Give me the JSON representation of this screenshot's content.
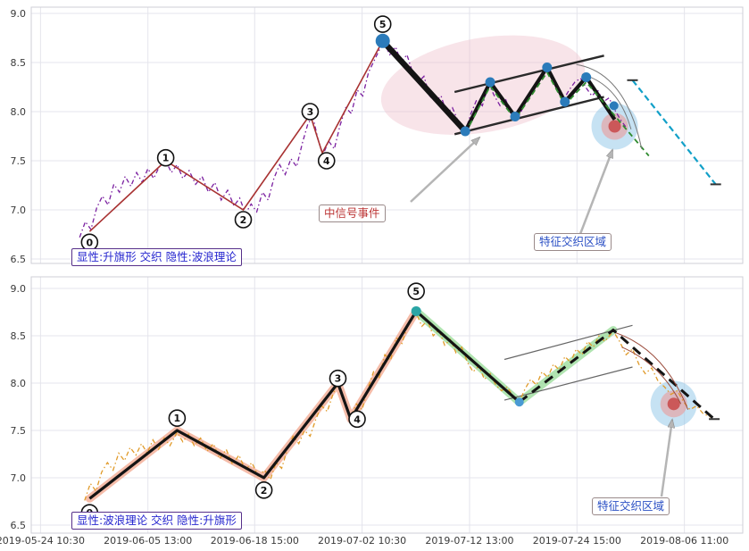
{
  "colors": {
    "grid": "#e4e4ec",
    "axis_text": "#3a3a3a",
    "border": "#cfcfd7",
    "top_price": "#7a1fa0",
    "bottom_price": "#e09a28",
    "wave_top": "#a83232",
    "black": "#141414",
    "green_dash": "#2e8b2e",
    "cyan_dash": "#12a0c8",
    "dot_blue": "#2b7bba",
    "pink_band": "#f2a58c",
    "green_band": "#8fd88f",
    "ellipse_pink": "#eebfca",
    "hotspot_outer": "#8ec6e8",
    "hotspot_mid": "#e8a0a0",
    "hotspot_inner": "#c84848",
    "channel_top": "#2a2a2a",
    "channel_bottom": "#666666",
    "arrow": "#b5b5b5"
  },
  "axes": {
    "y_ticks": [
      {
        "label": "9.0",
        "value": 9.0
      },
      {
        "label": "8.5",
        "value": 8.5
      },
      {
        "label": "8.0",
        "value": 8.0
      },
      {
        "label": "7.5",
        "value": 7.5
      },
      {
        "label": "7.0",
        "value": 7.0
      },
      {
        "label": "6.5",
        "value": 6.5
      }
    ],
    "x_ticks": [
      {
        "label": "2019-05-24 10:30",
        "x": 1.3
      },
      {
        "label": "2019-06-05 13:00",
        "x": 16.4
      },
      {
        "label": "2019-06-18 15:00",
        "x": 31.4
      },
      {
        "label": "2019-07-02 10:30",
        "x": 46.5
      },
      {
        "label": "2019-07-12 13:00",
        "x": 61.6
      },
      {
        "label": "2019-07-24 15:00",
        "x": 76.7
      },
      {
        "label": "2019-08-06 11:00",
        "x": 91.8
      }
    ]
  },
  "annotations": {
    "top_mode": "显性:升旗形 交织 隐性:波浪理论",
    "bottom_mode": "显性:波浪理论 交织 隐性:升旗形",
    "signal_event": "中信号事件",
    "feature_zone_top": "特征交织区域",
    "feature_zone_bottom": "特征交织区域"
  },
  "chart_data": [
    {
      "name": "upper",
      "type": "line",
      "title": "",
      "visible_pattern": "升旗形",
      "hidden_pattern": "波浪理论",
      "ylim": [
        6.45,
        9.06
      ],
      "xlim": [
        0,
        100
      ],
      "price_line": [
        [
          6.8,
          6.72
        ],
        [
          7.6,
          6.88
        ],
        [
          8.4,
          6.8
        ],
        [
          9.2,
          7.02
        ],
        [
          10,
          7.14
        ],
        [
          10.8,
          7.05
        ],
        [
          11.6,
          7.26
        ],
        [
          12.4,
          7.18
        ],
        [
          13.2,
          7.34
        ],
        [
          14,
          7.24
        ],
        [
          14.8,
          7.38
        ],
        [
          15.6,
          7.28
        ],
        [
          16.4,
          7.42
        ],
        [
          17.2,
          7.32
        ],
        [
          18,
          7.44
        ],
        [
          18.9,
          7.5
        ],
        [
          19.7,
          7.38
        ],
        [
          20.5,
          7.46
        ],
        [
          21.3,
          7.32
        ],
        [
          22.2,
          7.4
        ],
        [
          23.1,
          7.26
        ],
        [
          24,
          7.34
        ],
        [
          24.9,
          7.18
        ],
        [
          25.8,
          7.28
        ],
        [
          26.7,
          7.1
        ],
        [
          27.6,
          7.2
        ],
        [
          28.5,
          7.04
        ],
        [
          29.3,
          7.12
        ],
        [
          30.1,
          6.96
        ],
        [
          30.9,
          7.06
        ],
        [
          31.7,
          6.98
        ],
        [
          32.5,
          7.18
        ],
        [
          33.3,
          7.1
        ],
        [
          34.1,
          7.32
        ],
        [
          34.9,
          7.46
        ],
        [
          35.7,
          7.36
        ],
        [
          36.5,
          7.52
        ],
        [
          37.3,
          7.44
        ],
        [
          38.1,
          7.68
        ],
        [
          38.9,
          7.88
        ],
        [
          39.6,
          7.94
        ],
        [
          40.3,
          7.72
        ],
        [
          41,
          7.56
        ],
        [
          41.8,
          7.7
        ],
        [
          42.6,
          7.62
        ],
        [
          43.4,
          7.86
        ],
        [
          44.2,
          8.04
        ],
        [
          45,
          7.98
        ],
        [
          45.8,
          8.22
        ],
        [
          46.6,
          8.16
        ],
        [
          47.4,
          8.4
        ],
        [
          48.2,
          8.52
        ],
        [
          49,
          8.64
        ],
        [
          49.6,
          8.7
        ],
        [
          50.4,
          8.58
        ],
        [
          51.2,
          8.66
        ],
        [
          52,
          8.5
        ],
        [
          52.8,
          8.58
        ],
        [
          53.6,
          8.4
        ],
        [
          54.4,
          8.3
        ],
        [
          55.2,
          8.36
        ],
        [
          56,
          8.16
        ],
        [
          56.8,
          8.1
        ],
        [
          57.6,
          8.16
        ],
        [
          58.4,
          7.98
        ],
        [
          59.2,
          8.04
        ],
        [
          60,
          7.9
        ],
        [
          61,
          7.8
        ],
        [
          61.8,
          7.98
        ],
        [
          62.6,
          8.12
        ],
        [
          63.4,
          8.06
        ],
        [
          64.3,
          8.28
        ],
        [
          65.1,
          8.16
        ],
        [
          65.9,
          8.06
        ],
        [
          66.7,
          8.12
        ],
        [
          67.5,
          7.96
        ],
        [
          68.3,
          7.92
        ],
        [
          69.1,
          8.04
        ],
        [
          69.9,
          8.14
        ],
        [
          70.7,
          8.22
        ],
        [
          71.5,
          8.32
        ],
        [
          72.4,
          8.42
        ],
        [
          73.2,
          8.38
        ],
        [
          74,
          8.24
        ],
        [
          74.8,
          8.12
        ],
        [
          75.6,
          8.22
        ],
        [
          76.4,
          8.3
        ],
        [
          77.2,
          8.34
        ],
        [
          78,
          8.24
        ],
        [
          78.8,
          8.16
        ],
        [
          79.6,
          8.22
        ],
        [
          80.4,
          8.1
        ],
        [
          81.2,
          8.14
        ],
        [
          82,
          8.02
        ],
        [
          82.8,
          7.92
        ],
        [
          83.6,
          7.84
        ]
      ],
      "elliott_line": [
        [
          8.2,
          6.78
        ],
        [
          18.9,
          7.5
        ],
        [
          29.8,
          7.0
        ],
        [
          39.2,
          7.97
        ],
        [
          40.9,
          7.58
        ],
        [
          49.4,
          8.72
        ]
      ],
      "wave_markers": [
        {
          "n": "0",
          "x": 8.2,
          "p": 6.67
        },
        {
          "n": "1",
          "x": 18.9,
          "p": 7.53
        },
        {
          "n": "2",
          "x": 29.8,
          "p": 6.9
        },
        {
          "n": "3",
          "x": 39.2,
          "p": 8.0
        },
        {
          "n": "4",
          "x": 41.5,
          "p": 7.5
        },
        {
          "n": "5",
          "x": 49.4,
          "p": 8.89
        }
      ],
      "impulse_pole": [
        [
          49.4,
          8.72
        ],
        [
          61,
          7.8
        ]
      ],
      "flag_zigzag": [
        [
          61,
          7.8
        ],
        [
          64.5,
          8.3
        ],
        [
          68,
          7.95
        ],
        [
          72.5,
          8.45
        ],
        [
          75,
          8.1
        ],
        [
          78,
          8.35
        ],
        [
          82,
          7.92
        ]
      ],
      "channel": {
        "upper": [
          [
            59.5,
            8.2
          ],
          [
            80.5,
            8.57
          ]
        ],
        "lower": [
          [
            59.5,
            7.77
          ],
          [
            80.5,
            8.15
          ]
        ]
      },
      "green_dashed": [
        [
          61,
          7.78
        ],
        [
          64.5,
          8.26
        ],
        [
          68,
          7.92
        ],
        [
          72.5,
          8.4
        ],
        [
          75,
          8.07
        ],
        [
          78,
          8.3
        ],
        [
          86.8,
          7.55
        ]
      ],
      "cyan_dashed": [
        [
          84.5,
          8.32
        ],
        [
          96.2,
          7.26
        ]
      ],
      "end_ticks": [
        [
          84.5,
          8.32
        ],
        [
          96.2,
          7.26
        ]
      ],
      "arcs": [
        [
          76.6,
          8.48,
          83.5,
          8.4,
          85.8,
          7.62
        ],
        [
          77.4,
          8.38,
          82.5,
          8.28,
          84.3,
          7.82
        ]
      ],
      "arc_color": "#777777",
      "dots": [
        [
          49.4,
          8.72,
          8
        ],
        [
          61,
          7.8
        ],
        [
          64.5,
          8.3
        ],
        [
          68,
          7.95
        ],
        [
          72.5,
          8.45
        ],
        [
          75,
          8.1
        ],
        [
          78,
          8.35
        ],
        [
          81.9,
          8.06,
          5
        ]
      ],
      "ellipse": {
        "cx": 63.5,
        "cy": 8.27,
        "rx": 14.5,
        "ry": 0.48,
        "rotation": -10
      },
      "hotspot": {
        "cx": 82,
        "cy": 7.85
      }
    },
    {
      "name": "lower",
      "type": "line",
      "title": "",
      "visible_pattern": "波浪理论",
      "hidden_pattern": "升旗形",
      "ylim": [
        6.45,
        9.06
      ],
      "xlim": [
        0,
        100
      ],
      "price_line": [
        [
          7.5,
          6.76
        ],
        [
          8.3,
          6.94
        ],
        [
          9.1,
          6.86
        ],
        [
          9.9,
          7.06
        ],
        [
          10.7,
          7.16
        ],
        [
          11.5,
          7.08
        ],
        [
          12.3,
          7.26
        ],
        [
          13.1,
          7.18
        ],
        [
          13.9,
          7.32
        ],
        [
          14.7,
          7.24
        ],
        [
          15.5,
          7.36
        ],
        [
          16.3,
          7.26
        ],
        [
          17.1,
          7.4
        ],
        [
          17.9,
          7.3
        ],
        [
          18.7,
          7.42
        ],
        [
          19.5,
          7.34
        ],
        [
          20.5,
          7.48
        ],
        [
          21.3,
          7.38
        ],
        [
          22.1,
          7.46
        ],
        [
          22.9,
          7.34
        ],
        [
          23.8,
          7.42
        ],
        [
          24.7,
          7.28
        ],
        [
          25.6,
          7.36
        ],
        [
          26.5,
          7.2
        ],
        [
          27.4,
          7.3
        ],
        [
          28.3,
          7.14
        ],
        [
          29.2,
          7.24
        ],
        [
          30.1,
          7.08
        ],
        [
          31,
          7.16
        ],
        [
          31.9,
          7.02
        ],
        [
          32.8,
          7.08
        ],
        [
          33.6,
          6.98
        ],
        [
          34.4,
          7.16
        ],
        [
          35.2,
          7.1
        ],
        [
          36,
          7.3
        ],
        [
          36.8,
          7.44
        ],
        [
          37.6,
          7.36
        ],
        [
          38.4,
          7.5
        ],
        [
          39.2,
          7.44
        ],
        [
          40,
          7.62
        ],
        [
          40.8,
          7.76
        ],
        [
          41.6,
          7.7
        ],
        [
          42.4,
          7.88
        ],
        [
          43.1,
          8.0
        ],
        [
          43.9,
          7.82
        ],
        [
          44.9,
          7.64
        ],
        [
          45.7,
          7.78
        ],
        [
          46.5,
          7.72
        ],
        [
          47.3,
          7.94
        ],
        [
          48.1,
          8.12
        ],
        [
          48.9,
          8.06
        ],
        [
          49.7,
          8.3
        ],
        [
          50.5,
          8.24
        ],
        [
          51.3,
          8.48
        ],
        [
          52.1,
          8.42
        ],
        [
          52.9,
          8.6
        ],
        [
          53.6,
          8.68
        ],
        [
          54.1,
          8.74
        ],
        [
          54.9,
          8.6
        ],
        [
          55.7,
          8.66
        ],
        [
          56.5,
          8.5
        ],
        [
          57.3,
          8.56
        ],
        [
          58.1,
          8.4
        ],
        [
          58.9,
          8.46
        ],
        [
          59.7,
          8.32
        ],
        [
          60.5,
          8.38
        ],
        [
          61.3,
          8.22
        ],
        [
          62.1,
          8.12
        ],
        [
          62.9,
          8.18
        ],
        [
          63.7,
          8.04
        ],
        [
          64.5,
          8.1
        ],
        [
          65.3,
          7.98
        ],
        [
          66.1,
          7.92
        ],
        [
          66.9,
          7.96
        ],
        [
          67.7,
          7.86
        ],
        [
          68.6,
          7.8
        ],
        [
          69.4,
          7.94
        ],
        [
          70.2,
          8.04
        ],
        [
          71,
          7.98
        ],
        [
          71.8,
          8.12
        ],
        [
          72.6,
          8.06
        ],
        [
          73.4,
          8.2
        ],
        [
          74.2,
          8.14
        ],
        [
          75,
          8.28
        ],
        [
          75.8,
          8.22
        ],
        [
          76.6,
          8.36
        ],
        [
          77.4,
          8.3
        ],
        [
          78.2,
          8.44
        ],
        [
          79,
          8.38
        ],
        [
          79.8,
          8.5
        ],
        [
          80.6,
          8.44
        ],
        [
          81.8,
          8.55
        ],
        [
          82.7,
          8.44
        ],
        [
          83.6,
          8.3
        ],
        [
          84.5,
          8.36
        ],
        [
          85.4,
          8.2
        ],
        [
          86.3,
          8.1
        ],
        [
          87.2,
          8.16
        ],
        [
          88.1,
          8.02
        ],
        [
          89,
          7.96
        ],
        [
          89.9,
          7.88
        ],
        [
          90.8,
          7.92
        ],
        [
          91.7,
          7.8
        ],
        [
          92.6,
          7.72
        ],
        [
          93.5,
          7.76
        ],
        [
          94.4,
          7.68
        ],
        [
          95.5,
          7.64
        ]
      ],
      "wave_solid": [
        [
          8.2,
          6.78
        ],
        [
          20.5,
          7.5
        ],
        [
          32.7,
          7.0
        ],
        [
          43.1,
          8.0
        ],
        [
          44.9,
          7.62
        ],
        [
          54.1,
          8.76
        ],
        [
          68.6,
          7.8
        ]
      ],
      "wave_dashed": [
        [
          68.6,
          7.8
        ],
        [
          81.8,
          8.56
        ],
        [
          96,
          7.62
        ]
      ],
      "pink_band": [
        [
          8.2,
          6.78
        ],
        [
          20.5,
          7.5
        ],
        [
          32.7,
          7.0
        ],
        [
          43.1,
          8.0
        ],
        [
          44.9,
          7.62
        ],
        [
          54.1,
          8.76
        ]
      ],
      "green_band": [
        [
          54.1,
          8.76
        ],
        [
          68.6,
          7.8
        ],
        [
          81.8,
          8.56
        ]
      ],
      "wave_markers": [
        {
          "n": "0",
          "x": 8.2,
          "p": 6.63
        },
        {
          "n": "1",
          "x": 20.5,
          "p": 7.63
        },
        {
          "n": "2",
          "x": 32.7,
          "p": 6.87
        },
        {
          "n": "3",
          "x": 43.1,
          "p": 8.05
        },
        {
          "n": "4",
          "x": 45.8,
          "p": 7.62
        },
        {
          "n": "5",
          "x": 54.1,
          "p": 8.97
        }
      ],
      "channel": {
        "upper": [
          [
            66.5,
            8.25
          ],
          [
            84.5,
            8.61
          ]
        ],
        "lower": [
          [
            66.5,
            7.82
          ],
          [
            84.5,
            8.17
          ]
        ]
      },
      "arcs": [
        [
          82.2,
          8.53,
          89,
          8.35,
          92.3,
          7.72
        ],
        [
          83,
          8.38,
          88.5,
          8.2,
          91.3,
          7.78
        ]
      ],
      "arc_color": "#9a4a3a",
      "dots": [
        [
          54.1,
          8.76,
          5.5,
          "#2aa5a5"
        ],
        [
          68.6,
          7.8,
          5,
          "#4a9ad4"
        ]
      ],
      "end_ticks": [
        [
          96,
          7.62
        ]
      ],
      "hotspot": {
        "cx": 90.3,
        "cy": 7.78
      }
    }
  ]
}
